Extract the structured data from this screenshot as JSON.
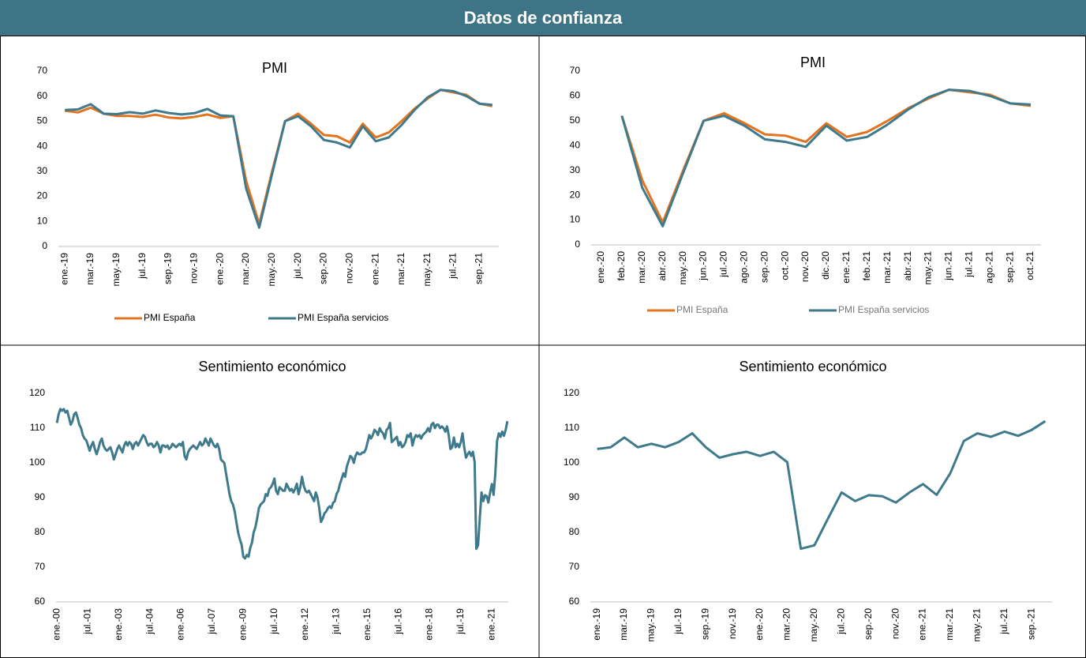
{
  "header": {
    "title": "Datos de confianza"
  },
  "chart_data": [
    {
      "type": "line",
      "title": "PMI",
      "categories": [
        "ene.-19",
        null,
        "mar.-19",
        null,
        "may.-19",
        null,
        "jul.-19",
        null,
        "sep.-19",
        null,
        "nov.-19",
        null,
        "ene.-20",
        null,
        "mar.-20",
        null,
        "may.-20",
        null,
        "jul.-20",
        null,
        "sep.-20",
        null,
        "nov.-20",
        null,
        "ene.-21",
        null,
        "mar.-21",
        null,
        "may.-21",
        null,
        "jul.-21",
        null,
        "sep.-21",
        null
      ],
      "series": [
        {
          "name": "PMI España",
          "color": "#E3741F",
          "values": [
            54.2,
            53.5,
            55.4,
            53,
            52.1,
            52.1,
            51.7,
            52.6,
            51.5,
            51.1,
            51.7,
            52.7,
            51.3,
            52,
            26,
            9,
            30,
            50,
            53,
            49,
            44.5,
            44,
            41.5,
            49,
            43.5,
            45.5,
            50,
            55,
            59,
            62.5,
            61.5,
            60.5,
            57,
            56
          ]
        },
        {
          "name": "PMI España servicios",
          "color": "#3E7A8C",
          "values": [
            54.5,
            54.7,
            56.8,
            53,
            52.8,
            53.6,
            53,
            54.3,
            53.3,
            52.7,
            53.2,
            54.9,
            52.3,
            52,
            23,
            7.5,
            29,
            50,
            52,
            48,
            42.5,
            41.5,
            39.5,
            48,
            42,
            43.5,
            48.5,
            54.5,
            59.5,
            62.5,
            62,
            60,
            57,
            56.5
          ]
        }
      ],
      "ylim": [
        0,
        70
      ],
      "yticks": [
        0,
        10,
        20,
        30,
        40,
        50,
        60,
        70
      ],
      "grid": false,
      "legend": "bottom"
    },
    {
      "type": "line",
      "title": "PMI",
      "categories": [
        "ene.-20",
        "feb.-20",
        "mar.-20",
        "abr.-20",
        "may.-20",
        "jun.-20",
        "jul.-20",
        "ago.-20",
        "sep.-20",
        "oct.-20",
        "nov.-20",
        "dic.-20",
        "ene.-21",
        "feb.-21",
        "mar.-21",
        "abr.-21",
        "may.-21",
        "jun.-21",
        "jul.-21",
        "ago.-21",
        "sep.-21",
        "oct.-21"
      ],
      "series": [
        {
          "name": "PMI España",
          "color": "#E3741F",
          "values": [
            null,
            52,
            26,
            9,
            30,
            50,
            53,
            49,
            44.5,
            44,
            41.5,
            49,
            43.5,
            45.5,
            50,
            55,
            59,
            62.5,
            61.5,
            60.5,
            57,
            56
          ]
        },
        {
          "name": "PMI España servicios",
          "color": "#3E7A8C",
          "values": [
            null,
            52,
            23,
            7.5,
            29,
            50,
            52,
            48,
            42.5,
            41.5,
            39.5,
            48,
            42,
            43.5,
            48.5,
            54.5,
            59.5,
            62.5,
            62,
            60,
            57,
            56.5
          ]
        }
      ],
      "ylim": [
        0,
        70
      ],
      "yticks": [
        0,
        10,
        20,
        30,
        40,
        50,
        60,
        70
      ],
      "grid": false,
      "legend": "bottom"
    },
    {
      "type": "line",
      "title": "Sentimiento económico",
      "categories": [
        "ene.-00",
        null,
        null,
        null,
        null,
        null,
        null,
        null,
        null,
        null,
        null,
        null,
        null,
        null,
        null,
        null,
        null,
        null,
        "jul.-01",
        null,
        null,
        null,
        null,
        null,
        null,
        null,
        null,
        null,
        null,
        null,
        null,
        null,
        null,
        null,
        null,
        null,
        "ene.-03",
        null,
        null,
        null,
        null,
        null,
        null,
        null,
        null,
        null,
        null,
        null,
        null,
        null,
        null,
        null,
        null,
        null,
        "jul.-04",
        null,
        null,
        null,
        null,
        null,
        null,
        null,
        null,
        null,
        null,
        null,
        null,
        null,
        null,
        null,
        null,
        null,
        "ene.-06",
        null,
        null,
        null,
        null,
        null,
        null,
        null,
        null,
        null,
        null,
        null,
        null,
        null,
        null,
        null,
        null,
        null,
        "jul.-07",
        null,
        null,
        null,
        null,
        null,
        null,
        null,
        null,
        null,
        null,
        null,
        null,
        null,
        null,
        null,
        null,
        null,
        "ene.-09",
        null,
        null,
        null,
        null,
        null,
        null,
        null,
        null,
        null,
        null,
        null,
        null,
        null,
        null,
        null,
        null,
        null,
        "jul.-10",
        null,
        null,
        null,
        null,
        null,
        null,
        null,
        null,
        null,
        null,
        null,
        null,
        null,
        null,
        null,
        null,
        null,
        "ene.-12",
        null,
        null,
        null,
        null,
        null,
        null,
        null,
        null,
        null,
        null,
        null,
        null,
        null,
        null,
        null,
        null,
        null,
        "jul.-13",
        null,
        null,
        null,
        null,
        null,
        null,
        null,
        null,
        null,
        null,
        null,
        null,
        null,
        null,
        null,
        null,
        null,
        "ene.-15",
        null,
        null,
        null,
        null,
        null,
        null,
        null,
        null,
        null,
        null,
        null,
        null,
        null,
        null,
        null,
        null,
        null,
        "jul.-16",
        null,
        null,
        null,
        null,
        null,
        null,
        null,
        null,
        null,
        null,
        null,
        null,
        null,
        null,
        null,
        null,
        null,
        "ene.-18",
        null,
        null,
        null,
        null,
        null,
        null,
        null,
        null,
        null,
        null,
        null,
        null,
        null,
        null,
        null,
        null,
        null,
        "jul.-19",
        null,
        null,
        null,
        null,
        null,
        null,
        null,
        null,
        null,
        null,
        null,
        null,
        null,
        null,
        null,
        null,
        null,
        "ene.-21",
        null,
        null,
        null,
        null,
        null,
        null,
        null,
        null,
        null
      ],
      "values": [
        111.5,
        114,
        115.5,
        115,
        115.5,
        114.5,
        115,
        113,
        111,
        112,
        114,
        114.5,
        113,
        111,
        110,
        108,
        107,
        106.5,
        105,
        103.5,
        105,
        106,
        104,
        102.5,
        104,
        106,
        107,
        105,
        104,
        103.5,
        104,
        104.5,
        103,
        101,
        102.5,
        104,
        105,
        104,
        103,
        105,
        106,
        105,
        106,
        105.5,
        104,
        105.5,
        106,
        105,
        106,
        107,
        108,
        107.5,
        106,
        105,
        105.5,
        105.5,
        104.5,
        105,
        106,
        105,
        103,
        105,
        105,
        104.5,
        105,
        104,
        104.5,
        105.5,
        105,
        104.5,
        105,
        105.5,
        105,
        106,
        102,
        101,
        103,
        104,
        104.5,
        105,
        104.5,
        104,
        105,
        106,
        105,
        105.5,
        107,
        106,
        105,
        107,
        106,
        105,
        104.5,
        105.5,
        104,
        101,
        100.5,
        100,
        97,
        94,
        91,
        89,
        88,
        86,
        83,
        80,
        78,
        76.5,
        73,
        72.5,
        73.5,
        73,
        75.5,
        77,
        80,
        81.5,
        84,
        87,
        88,
        88.5,
        89,
        91,
        90.5,
        92.5,
        93,
        94,
        95.5,
        92,
        91,
        93,
        92.5,
        92,
        92,
        94,
        93,
        92,
        92.5,
        91.5,
        92.5,
        94,
        91,
        93,
        96,
        93.5,
        92,
        91.5,
        92,
        91,
        90,
        89,
        91.5,
        90,
        87,
        83,
        84,
        85.5,
        86,
        87,
        87.5,
        87,
        88.5,
        89,
        91,
        92,
        94,
        95.5,
        97,
        96,
        99,
        100.5,
        102,
        101.5,
        100,
        102,
        103,
        102.5,
        102.5,
        103,
        103,
        104,
        106,
        108,
        107,
        108,
        109.5,
        109,
        108,
        110,
        109,
        108.5,
        107,
        109.5,
        110,
        111.5,
        106,
        106.5,
        107,
        107.5,
        105,
        106,
        104.5,
        105,
        106,
        108,
        107.5,
        108.5,
        105,
        107,
        108,
        107.5,
        108,
        107,
        108,
        108.5,
        109,
        110,
        109,
        111,
        111.5,
        110,
        111,
        111,
        110,
        110.5,
        110,
        109,
        110.5,
        108,
        104,
        104.5,
        107.3,
        104.5,
        105.5,
        104.5,
        106,
        108.5,
        104.5,
        101.5,
        102.5,
        103.2,
        102,
        103.2,
        100.2,
        75.3,
        76.3,
        84,
        91.5,
        89,
        90.7,
        90.4,
        88.6,
        91.5,
        93.9,
        90.8,
        97,
        106.3,
        108.5,
        107.5,
        109,
        107.8,
        109.5,
        112
      ],
      "color": "#3E7A8C",
      "ylim": [
        60,
        120
      ],
      "yticks": [
        60,
        70,
        80,
        90,
        100,
        110,
        120
      ],
      "grid": false
    },
    {
      "type": "line",
      "title": "Sentimiento económico",
      "categories": [
        "ene.-19",
        null,
        "mar.-19",
        null,
        "may.-19",
        null,
        "jul.-19",
        null,
        "sep.-19",
        null,
        "nov.-19",
        null,
        "ene.-20",
        null,
        "mar.-20",
        null,
        "may.-20",
        null,
        "jul.-20",
        null,
        "sep.-20",
        null,
        "nov.-20",
        null,
        "ene.-21",
        null,
        "mar.-21",
        null,
        "may.-21",
        null,
        "jul.-21",
        null,
        "sep.-21",
        null
      ],
      "values": [
        104,
        104.5,
        107.3,
        104.5,
        105.5,
        104.5,
        106,
        108.5,
        104.5,
        101.5,
        102.5,
        103.2,
        102,
        103.2,
        100.2,
        75.3,
        76.3,
        84,
        91.5,
        89,
        90.7,
        90.4,
        88.6,
        91.5,
        93.9,
        90.8,
        97,
        106.3,
        108.5,
        107.5,
        109,
        107.8,
        109.5,
        112
      ],
      "color": "#3E7A8C",
      "ylim": [
        60,
        120
      ],
      "yticks": [
        60,
        70,
        80,
        90,
        100,
        110,
        120
      ],
      "grid": false
    }
  ]
}
